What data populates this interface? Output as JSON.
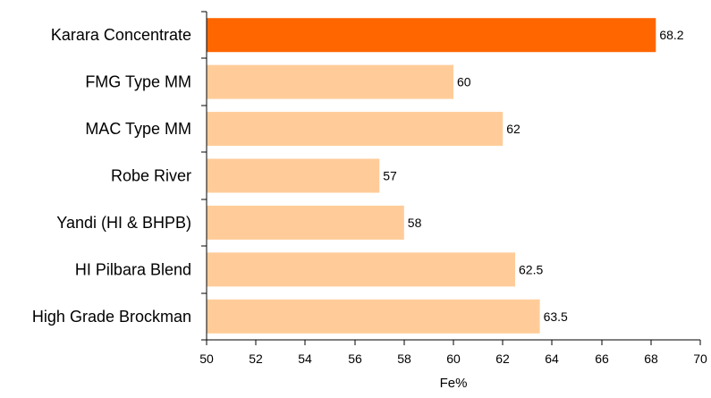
{
  "chart_data": {
    "type": "bar",
    "orientation": "horizontal",
    "categories": [
      "Karara Concentrate",
      "FMG Type MM",
      "MAC Type MM",
      "Robe River",
      "Yandi (HI & BHPB)",
      "HI Pilbara Blend",
      "High Grade Brockman"
    ],
    "values": [
      68.2,
      60,
      62,
      57,
      58,
      62.5,
      63.5
    ],
    "data_labels": [
      "68.2",
      "60",
      "62",
      "57",
      "58",
      "62.5",
      "63.5"
    ],
    "xlabel": "Fe%",
    "xlim": [
      50,
      70
    ],
    "xticks": [
      50,
      52,
      54,
      56,
      58,
      60,
      62,
      64,
      66,
      68,
      70
    ],
    "grid": false,
    "legend": "none",
    "colors": {
      "highlight": "#ff6600",
      "default": "#ffcc99",
      "axis": "#000000"
    },
    "highlight_index": 0
  }
}
